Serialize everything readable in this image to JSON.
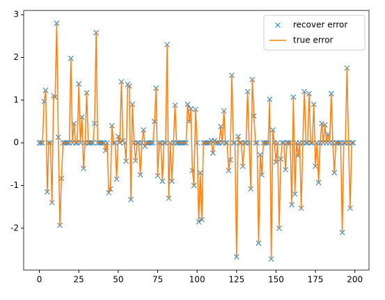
{
  "chart_data": {
    "type": "line",
    "x": [
      0,
      1,
      2,
      3,
      4,
      5,
      6,
      7,
      8,
      9,
      10,
      11,
      12,
      13,
      14,
      15,
      16,
      17,
      18,
      19,
      20,
      21,
      22,
      23,
      24,
      25,
      26,
      27,
      28,
      29,
      30,
      31,
      32,
      33,
      34,
      35,
      36,
      37,
      38,
      39,
      40,
      41,
      42,
      43,
      44,
      45,
      46,
      47,
      48,
      49,
      50,
      51,
      52,
      53,
      54,
      55,
      56,
      57,
      58,
      59,
      60,
      61,
      62,
      63,
      64,
      65,
      66,
      67,
      68,
      69,
      70,
      71,
      72,
      73,
      74,
      75,
      76,
      77,
      78,
      79,
      80,
      81,
      82,
      83,
      84,
      85,
      86,
      87,
      88,
      89,
      90,
      91,
      92,
      93,
      94,
      95,
      96,
      97,
      98,
      99,
      100,
      101,
      102,
      103,
      104,
      105,
      106,
      107,
      108,
      109,
      110,
      111,
      112,
      113,
      114,
      115,
      116,
      117,
      118,
      119,
      120,
      121,
      122,
      123,
      124,
      125,
      126,
      127,
      128,
      129,
      130,
      131,
      132,
      133,
      134,
      135,
      136,
      137,
      138,
      139,
      140,
      141,
      142,
      143,
      144,
      145,
      146,
      147,
      148,
      149,
      150,
      151,
      152,
      153,
      154,
      155,
      156,
      157,
      158,
      159,
      160,
      161,
      162,
      163,
      164,
      165,
      166,
      167,
      168,
      169,
      170,
      171,
      172,
      173,
      174,
      175,
      176,
      177,
      178,
      179,
      180,
      181,
      182,
      183,
      184,
      185,
      186,
      187,
      188,
      189,
      190,
      191,
      192,
      193,
      194,
      195,
      196,
      197,
      198,
      199
    ],
    "series": [
      {
        "name": "recover error",
        "color": "#1f77b4",
        "style": "marker",
        "values": [
          0,
          0,
          0,
          0.97,
          1.23,
          -1.15,
          0,
          0,
          -1.4,
          1.1,
          1.07,
          2.8,
          0.13,
          -1.93,
          -0.83,
          0,
          0,
          0,
          0,
          0,
          1.98,
          0,
          0.45,
          0,
          0,
          1.38,
          0,
          0.6,
          -0.6,
          0,
          1.17,
          0,
          0,
          0,
          0,
          0.45,
          2.58,
          0,
          0,
          0,
          0,
          0,
          -0.18,
          0,
          -1.17,
          -1.08,
          0.4,
          0,
          0,
          -0.85,
          0.15,
          0,
          1.43,
          0.05,
          0,
          -0.43,
          1.37,
          1.33,
          -1.33,
          0.9,
          0,
          -0.42,
          0,
          0,
          -0.75,
          0,
          0.3,
          -0.08,
          0,
          0,
          0,
          0,
          0,
          0.5,
          1.28,
          -0.77,
          0,
          0,
          -0.9,
          0,
          0,
          2.3,
          -1.3,
          0,
          -0.9,
          0,
          0.88,
          0,
          0,
          0,
          0,
          0,
          0,
          0,
          0.9,
          0.5,
          0.8,
          -0.65,
          -1.0,
          0.78,
          0,
          -1.85,
          -0.7,
          -1.8,
          0,
          0,
          0,
          0,
          0,
          0.05,
          -0.24,
          0.05,
          0,
          0,
          0,
          0.38,
          0,
          0.75,
          0,
          0,
          -0.65,
          -0.4,
          1.58,
          0,
          0,
          -2.67,
          0.15,
          0,
          0,
          -0.55,
          0,
          0,
          1.2,
          0,
          -1.08,
          1.48,
          0.63,
          0,
          0,
          -2.35,
          -0.28,
          -0.75,
          0,
          0,
          0,
          0,
          1.02,
          -2.72,
          0.3,
          0,
          -0.45,
          0,
          -2.0,
          -0.38,
          0,
          0,
          -0.63,
          0,
          0,
          0,
          -1.45,
          1.07,
          -1.2,
          0,
          -0.3,
          0,
          -1.53,
          0,
          1.2,
          0,
          0,
          1.15,
          0,
          0,
          0.9,
          -0.55,
          0,
          -0.93,
          0,
          0.45,
          0,
          0.42,
          0,
          0.2,
          0,
          1.15,
          0,
          -0.7,
          0,
          0,
          0,
          0,
          -2.1,
          0,
          0,
          1.75,
          0,
          -1.53,
          0,
          0
        ]
      },
      {
        "name": "true error",
        "color": "#ff7f0e",
        "style": "line",
        "values": [
          0,
          0,
          0,
          0.97,
          1.23,
          -1.15,
          0,
          0,
          -1.4,
          1.1,
          1.07,
          2.8,
          0.13,
          -1.93,
          -0.83,
          0,
          0,
          0,
          0,
          0,
          1.98,
          0,
          0.45,
          0,
          0,
          1.38,
          0,
          0.6,
          -0.6,
          0,
          1.17,
          0,
          0,
          0,
          0,
          0.45,
          2.58,
          0,
          0,
          0,
          0,
          0,
          -0.18,
          0,
          -1.17,
          -1.08,
          0.4,
          0,
          0,
          -0.85,
          0.15,
          0,
          1.43,
          0.05,
          0,
          -0.43,
          1.37,
          1.33,
          -1.33,
          0.9,
          0,
          -0.42,
          0,
          0,
          -0.75,
          0,
          0.3,
          -0.08,
          0,
          0,
          0,
          0,
          0,
          0.5,
          1.28,
          -0.77,
          0,
          0,
          -0.9,
          0,
          0,
          2.3,
          -1.3,
          0,
          -0.9,
          0,
          0.88,
          0,
          0,
          0,
          0,
          0,
          0,
          0,
          0.9,
          0.5,
          0.8,
          -0.65,
          -1.0,
          0.78,
          0,
          -1.85,
          -0.7,
          -1.8,
          0,
          0,
          0,
          0,
          0,
          0.05,
          -0.24,
          0.05,
          0,
          0,
          0,
          0.38,
          0,
          0.75,
          0,
          0,
          -0.65,
          -0.4,
          1.58,
          0,
          0,
          -2.67,
          0.15,
          0,
          0,
          -0.55,
          0,
          0,
          1.2,
          0,
          -1.08,
          1.48,
          0.63,
          0,
          0,
          -2.35,
          -0.28,
          -0.75,
          0,
          0,
          0,
          0,
          1.02,
          -2.72,
          0.3,
          0,
          -0.45,
          0,
          -2.0,
          -0.38,
          0,
          0,
          -0.63,
          0,
          0,
          0,
          -1.45,
          1.07,
          -1.2,
          0,
          -0.3,
          0,
          -1.53,
          0,
          1.2,
          0,
          0,
          1.15,
          0,
          0,
          0.9,
          -0.55,
          0,
          -0.93,
          0,
          0.45,
          0,
          0.42,
          0,
          0.2,
          0,
          1.15,
          0,
          -0.7,
          0,
          0,
          0,
          0,
          -2.1,
          0,
          0,
          1.75,
          0,
          -1.53,
          0,
          0
        ]
      }
    ],
    "xlim": [
      -9.95,
      208.95
    ],
    "xticks": [
      0,
      25,
      50,
      75,
      100,
      125,
      150,
      175,
      200
    ],
    "ylim": [
      -2.98,
      3.1
    ],
    "yticks": [
      -2,
      -1,
      0,
      1,
      2,
      3
    ],
    "grid": false,
    "legend": "upper right"
  }
}
